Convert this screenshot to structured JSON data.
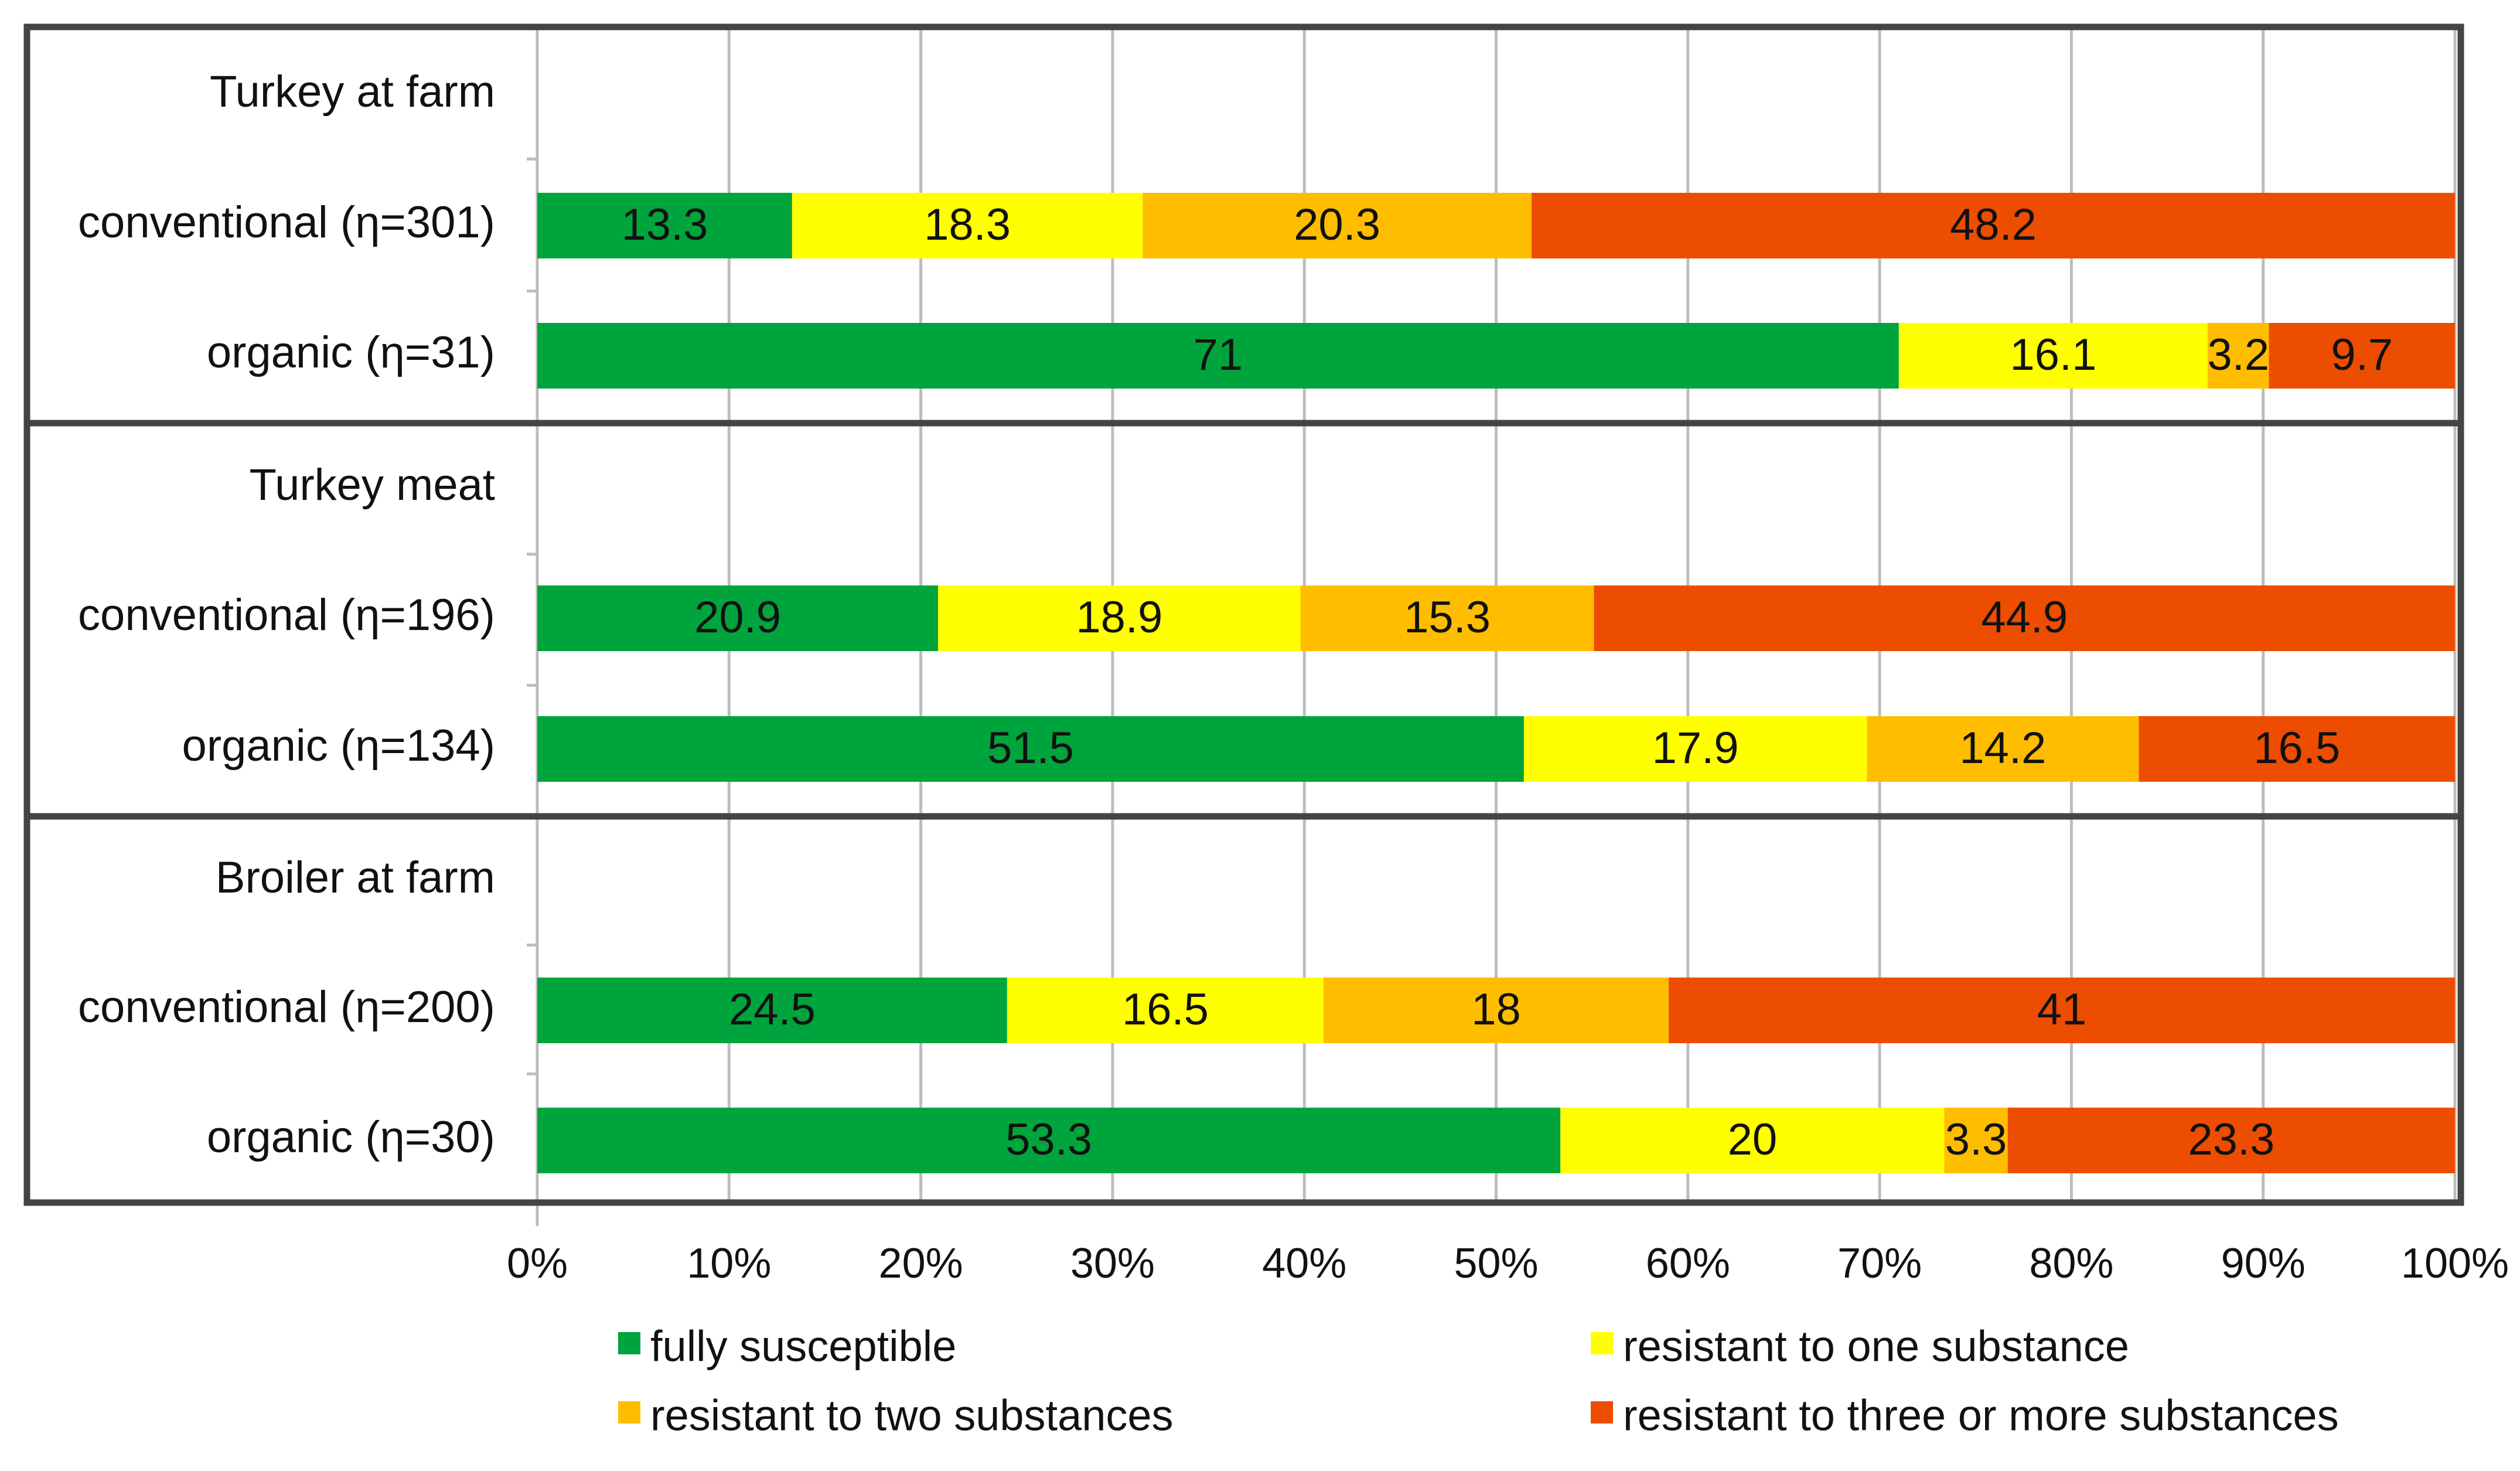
{
  "chart_data": {
    "type": "bar",
    "orientation": "horizontal",
    "stacked": "100%",
    "title": "",
    "xlabel": "",
    "ylabel": "",
    "xlim": [
      0,
      100
    ],
    "x_ticks": [
      "0%",
      "10%",
      "20%",
      "30%",
      "40%",
      "50%",
      "60%",
      "70%",
      "80%",
      "90%",
      "100%"
    ],
    "grid": true,
    "legend_position": "bottom",
    "groups": [
      {
        "title": "Turkey at farm",
        "rows": [
          {
            "label": "conventional (η=301)",
            "values": [
              13.3,
              18.3,
              20.3,
              48.2
            ]
          },
          {
            "label": "organic (η=31)",
            "values": [
              71,
              16.1,
              3.2,
              9.7
            ]
          }
        ]
      },
      {
        "title": "Turkey meat",
        "rows": [
          {
            "label": "conventional (η=196)",
            "values": [
              20.9,
              18.9,
              15.3,
              44.9
            ]
          },
          {
            "label": "organic (η=134)",
            "values": [
              51.5,
              17.9,
              14.2,
              16.5
            ]
          }
        ]
      },
      {
        "title": "Broiler at farm",
        "rows": [
          {
            "label": "conventional (η=200)",
            "values": [
              24.5,
              16.5,
              18,
              41
            ]
          },
          {
            "label": "organic (η=30)",
            "values": [
              53.3,
              20,
              3.3,
              23.3
            ]
          }
        ]
      }
    ],
    "series": [
      {
        "name": "fully susceptible",
        "color": "#00a43c"
      },
      {
        "name": "resistant to one substance",
        "color": "#ffff00"
      },
      {
        "name": "resistant to two substances",
        "color": "#ffbd00"
      },
      {
        "name": "resistant to three or more substances",
        "color": "#ec4d00"
      }
    ]
  }
}
